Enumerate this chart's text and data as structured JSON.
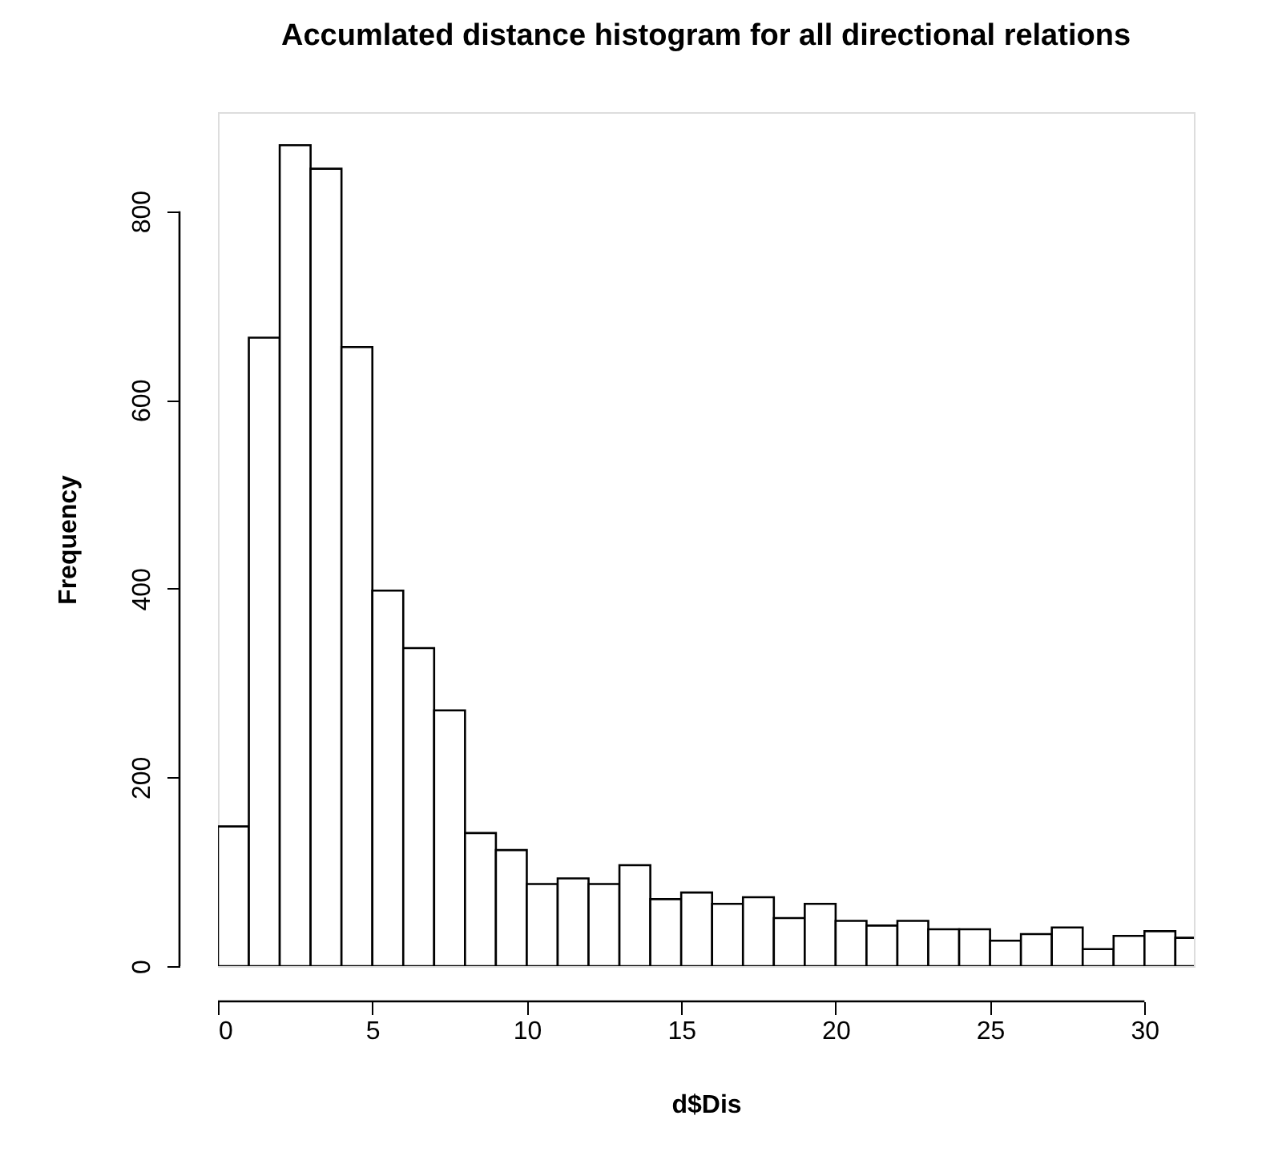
{
  "chart_data": {
    "type": "histogram",
    "title": "Accumlated distance histogram for all directional relations",
    "xlabel": "d$Dis",
    "ylabel": "Frequency",
    "bins": [
      0,
      1,
      2,
      3,
      4,
      5,
      6,
      7,
      8,
      9,
      10,
      11,
      12,
      13,
      14,
      15,
      16,
      17,
      18,
      19,
      20,
      21,
      22,
      23,
      24,
      25,
      26,
      27,
      28,
      29,
      30,
      31,
      32
    ],
    "values": [
      148,
      666,
      870,
      845,
      656,
      398,
      337,
      271,
      141,
      123,
      87,
      93,
      87,
      107,
      71,
      78,
      66,
      73,
      51,
      66,
      48,
      43,
      48,
      39,
      39,
      27,
      34,
      41,
      18,
      32,
      37,
      30
    ],
    "color": "#ffffff",
    "xlim": [
      0,
      31.6
    ],
    "xticks": [
      0,
      5,
      10,
      15,
      20,
      25,
      30
    ],
    "ylim": [
      0,
      905
    ],
    "yticks": [
      0,
      200,
      400,
      600,
      800
    ],
    "grid": false
  }
}
